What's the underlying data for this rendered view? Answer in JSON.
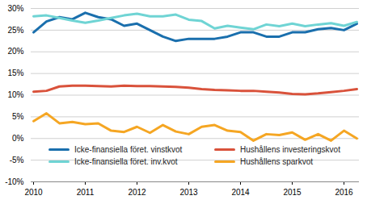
{
  "chart_data": {
    "type": "line",
    "categories": [
      "2010",
      null,
      null,
      null,
      "2011",
      null,
      null,
      null,
      "2012",
      null,
      null,
      null,
      "2013",
      null,
      null,
      null,
      "2014",
      null,
      null,
      null,
      "2015",
      null,
      null,
      null,
      "2016",
      null
    ],
    "series": [
      {
        "name": "Icke-finansiella föret. vinstkvot",
        "color": "#1a6fad",
        "values": [
          24.5,
          27,
          28,
          27.5,
          29,
          28,
          27.5,
          26,
          26.5,
          25,
          23.5,
          22.5,
          23,
          23,
          23,
          23.5,
          24.5,
          24.5,
          23.5,
          23.5,
          24.5,
          24.5,
          25.2,
          25.5,
          25,
          26.5
        ]
      },
      {
        "name": "Icke-finansiella föret. inv.kvot",
        "color": "#6fd4d4",
        "values": [
          28.2,
          28.4,
          27.8,
          27.2,
          26.7,
          27.2,
          27.8,
          28.4,
          28.8,
          28.2,
          28.2,
          28.6,
          27.4,
          27.1,
          25.4,
          26,
          25.6,
          25.2,
          26.3,
          25.9,
          26.5,
          25.9,
          26.3,
          26.6,
          26,
          26.9
        ]
      },
      {
        "name": "Hushållens investeringskvot",
        "color": "#d9523b",
        "values": [
          10.8,
          11,
          12,
          12.2,
          12.2,
          12.1,
          12,
          12.2,
          12.1,
          12.1,
          12,
          11.9,
          11.7,
          11.4,
          11.2,
          11.1,
          11,
          11,
          10.8,
          10.6,
          10.3,
          10.2,
          10.4,
          10.7,
          11,
          11.4
        ]
      },
      {
        "name": "Hushållens sparkvot",
        "color": "#f5a623",
        "values": [
          4,
          5.8,
          3.5,
          3.8,
          3.3,
          3.5,
          1.8,
          1.5,
          2.7,
          1.3,
          3.1,
          1.6,
          1,
          2.7,
          3.1,
          1.8,
          1.5,
          -0.5,
          1,
          0.8,
          1.4,
          -0.3,
          1,
          -0.5,
          1.8,
          0
        ]
      }
    ],
    "ylim": [
      -10,
      30
    ],
    "yticks": [
      {
        "value": -10,
        "label": "-10%"
      },
      {
        "value": -5,
        "label": "-5%"
      },
      {
        "value": 0,
        "label": "0%"
      },
      {
        "value": 5,
        "label": "5%"
      },
      {
        "value": 10,
        "label": "10%"
      },
      {
        "value": 15,
        "label": "15%"
      },
      {
        "value": 20,
        "label": "20%"
      },
      {
        "value": 25,
        "label": "25%"
      },
      {
        "value": 30,
        "label": "30%"
      }
    ],
    "grid": true,
    "legend": "bottom"
  }
}
